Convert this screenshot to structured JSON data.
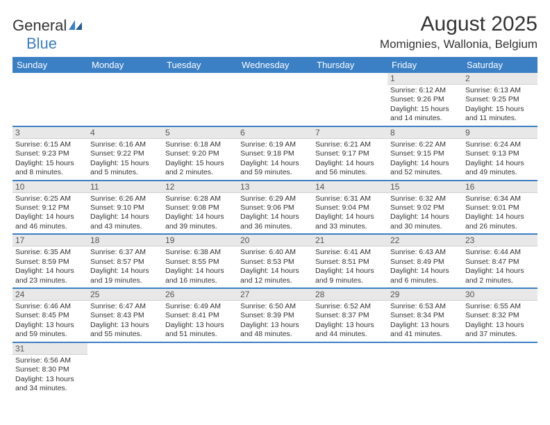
{
  "logo": {
    "text1": "General",
    "text2": "Blue"
  },
  "title": "August 2025",
  "location": "Momignies, Wallonia, Belgium",
  "colors": {
    "header_bg": "#3b7fc4",
    "header_text": "#ffffff",
    "daynum_bg": "#e8e8e8",
    "week_sep": "#3b7fc4",
    "text": "#333333"
  },
  "day_headers": [
    "Sunday",
    "Monday",
    "Tuesday",
    "Wednesday",
    "Thursday",
    "Friday",
    "Saturday"
  ],
  "weeks": [
    [
      null,
      null,
      null,
      null,
      null,
      {
        "n": "1",
        "sr": "Sunrise: 6:12 AM",
        "ss": "Sunset: 9:26 PM",
        "dl": "Daylight: 15 hours and 14 minutes."
      },
      {
        "n": "2",
        "sr": "Sunrise: 6:13 AM",
        "ss": "Sunset: 9:25 PM",
        "dl": "Daylight: 15 hours and 11 minutes."
      }
    ],
    [
      {
        "n": "3",
        "sr": "Sunrise: 6:15 AM",
        "ss": "Sunset: 9:23 PM",
        "dl": "Daylight: 15 hours and 8 minutes."
      },
      {
        "n": "4",
        "sr": "Sunrise: 6:16 AM",
        "ss": "Sunset: 9:22 PM",
        "dl": "Daylight: 15 hours and 5 minutes."
      },
      {
        "n": "5",
        "sr": "Sunrise: 6:18 AM",
        "ss": "Sunset: 9:20 PM",
        "dl": "Daylight: 15 hours and 2 minutes."
      },
      {
        "n": "6",
        "sr": "Sunrise: 6:19 AM",
        "ss": "Sunset: 9:18 PM",
        "dl": "Daylight: 14 hours and 59 minutes."
      },
      {
        "n": "7",
        "sr": "Sunrise: 6:21 AM",
        "ss": "Sunset: 9:17 PM",
        "dl": "Daylight: 14 hours and 56 minutes."
      },
      {
        "n": "8",
        "sr": "Sunrise: 6:22 AM",
        "ss": "Sunset: 9:15 PM",
        "dl": "Daylight: 14 hours and 52 minutes."
      },
      {
        "n": "9",
        "sr": "Sunrise: 6:24 AM",
        "ss": "Sunset: 9:13 PM",
        "dl": "Daylight: 14 hours and 49 minutes."
      }
    ],
    [
      {
        "n": "10",
        "sr": "Sunrise: 6:25 AM",
        "ss": "Sunset: 9:12 PM",
        "dl": "Daylight: 14 hours and 46 minutes."
      },
      {
        "n": "11",
        "sr": "Sunrise: 6:26 AM",
        "ss": "Sunset: 9:10 PM",
        "dl": "Daylight: 14 hours and 43 minutes."
      },
      {
        "n": "12",
        "sr": "Sunrise: 6:28 AM",
        "ss": "Sunset: 9:08 PM",
        "dl": "Daylight: 14 hours and 39 minutes."
      },
      {
        "n": "13",
        "sr": "Sunrise: 6:29 AM",
        "ss": "Sunset: 9:06 PM",
        "dl": "Daylight: 14 hours and 36 minutes."
      },
      {
        "n": "14",
        "sr": "Sunrise: 6:31 AM",
        "ss": "Sunset: 9:04 PM",
        "dl": "Daylight: 14 hours and 33 minutes."
      },
      {
        "n": "15",
        "sr": "Sunrise: 6:32 AM",
        "ss": "Sunset: 9:02 PM",
        "dl": "Daylight: 14 hours and 30 minutes."
      },
      {
        "n": "16",
        "sr": "Sunrise: 6:34 AM",
        "ss": "Sunset: 9:01 PM",
        "dl": "Daylight: 14 hours and 26 minutes."
      }
    ],
    [
      {
        "n": "17",
        "sr": "Sunrise: 6:35 AM",
        "ss": "Sunset: 8:59 PM",
        "dl": "Daylight: 14 hours and 23 minutes."
      },
      {
        "n": "18",
        "sr": "Sunrise: 6:37 AM",
        "ss": "Sunset: 8:57 PM",
        "dl": "Daylight: 14 hours and 19 minutes."
      },
      {
        "n": "19",
        "sr": "Sunrise: 6:38 AM",
        "ss": "Sunset: 8:55 PM",
        "dl": "Daylight: 14 hours and 16 minutes."
      },
      {
        "n": "20",
        "sr": "Sunrise: 6:40 AM",
        "ss": "Sunset: 8:53 PM",
        "dl": "Daylight: 14 hours and 12 minutes."
      },
      {
        "n": "21",
        "sr": "Sunrise: 6:41 AM",
        "ss": "Sunset: 8:51 PM",
        "dl": "Daylight: 14 hours and 9 minutes."
      },
      {
        "n": "22",
        "sr": "Sunrise: 6:43 AM",
        "ss": "Sunset: 8:49 PM",
        "dl": "Daylight: 14 hours and 6 minutes."
      },
      {
        "n": "23",
        "sr": "Sunrise: 6:44 AM",
        "ss": "Sunset: 8:47 PM",
        "dl": "Daylight: 14 hours and 2 minutes."
      }
    ],
    [
      {
        "n": "24",
        "sr": "Sunrise: 6:46 AM",
        "ss": "Sunset: 8:45 PM",
        "dl": "Daylight: 13 hours and 59 minutes."
      },
      {
        "n": "25",
        "sr": "Sunrise: 6:47 AM",
        "ss": "Sunset: 8:43 PM",
        "dl": "Daylight: 13 hours and 55 minutes."
      },
      {
        "n": "26",
        "sr": "Sunrise: 6:49 AM",
        "ss": "Sunset: 8:41 PM",
        "dl": "Daylight: 13 hours and 51 minutes."
      },
      {
        "n": "27",
        "sr": "Sunrise: 6:50 AM",
        "ss": "Sunset: 8:39 PM",
        "dl": "Daylight: 13 hours and 48 minutes."
      },
      {
        "n": "28",
        "sr": "Sunrise: 6:52 AM",
        "ss": "Sunset: 8:37 PM",
        "dl": "Daylight: 13 hours and 44 minutes."
      },
      {
        "n": "29",
        "sr": "Sunrise: 6:53 AM",
        "ss": "Sunset: 8:34 PM",
        "dl": "Daylight: 13 hours and 41 minutes."
      },
      {
        "n": "30",
        "sr": "Sunrise: 6:55 AM",
        "ss": "Sunset: 8:32 PM",
        "dl": "Daylight: 13 hours and 37 minutes."
      }
    ],
    [
      {
        "n": "31",
        "sr": "Sunrise: 6:56 AM",
        "ss": "Sunset: 8:30 PM",
        "dl": "Daylight: 13 hours and 34 minutes."
      },
      null,
      null,
      null,
      null,
      null,
      null
    ]
  ]
}
